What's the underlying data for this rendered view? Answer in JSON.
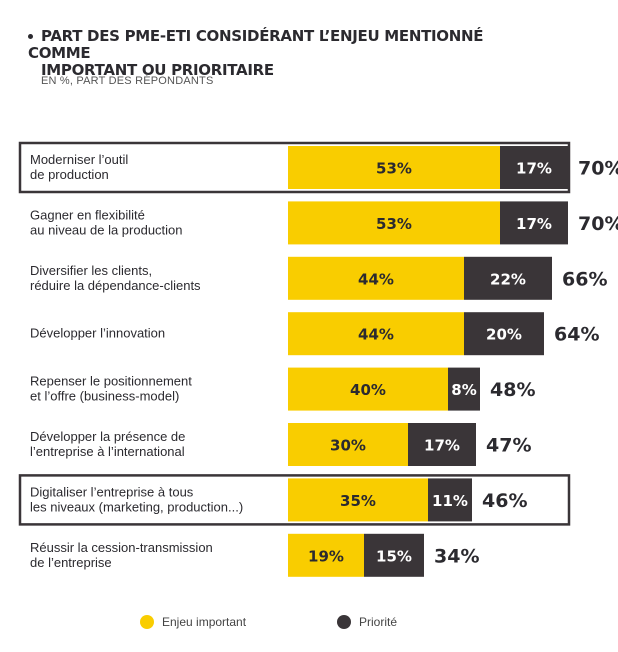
{
  "header": {
    "title_line1": "PART DES PME-ETI CONSIDÉRANT L’ENJEU MENTIONNÉ COMME",
    "title_line2": "IMPORTANT OU PRIORITAIRE",
    "subtitle": "EN %, PART DES RÉPONDANTS"
  },
  "chart_data": {
    "type": "bar",
    "orientation": "horizontal",
    "stacked": true,
    "unit": "%",
    "categories": [
      [
        "Moderniser l’outil",
        "de production"
      ],
      [
        "Gagner en flexibilité",
        "au niveau de la production"
      ],
      [
        "Diversifier les clients,",
        "réduire la dépendance-clients"
      ],
      [
        "Développer l’innovation"
      ],
      [
        "Repenser le positionnement",
        "et l’offre (business-model)"
      ],
      [
        "Développer la présence de",
        "l’entreprise à l’international"
      ],
      [
        "Digitaliser l’entreprise à tous",
        "les niveaux (marketing, production...)"
      ],
      [
        "Réussir la cession-transmission",
        "de l’entreprise"
      ]
    ],
    "highlighted": [
      true,
      false,
      false,
      false,
      false,
      false,
      true,
      false
    ],
    "series": [
      {
        "name": "Enjeu important",
        "color": "#f9cd00",
        "values": [
          53,
          53,
          44,
          44,
          40,
          30,
          35,
          19
        ]
      },
      {
        "name": "Priorité",
        "color": "#3a3538",
        "values": [
          17,
          17,
          22,
          20,
          8,
          17,
          11,
          15
        ]
      }
    ],
    "totals": [
      70,
      70,
      66,
      64,
      48,
      47,
      46,
      34
    ],
    "legend_position": "bottom"
  }
}
